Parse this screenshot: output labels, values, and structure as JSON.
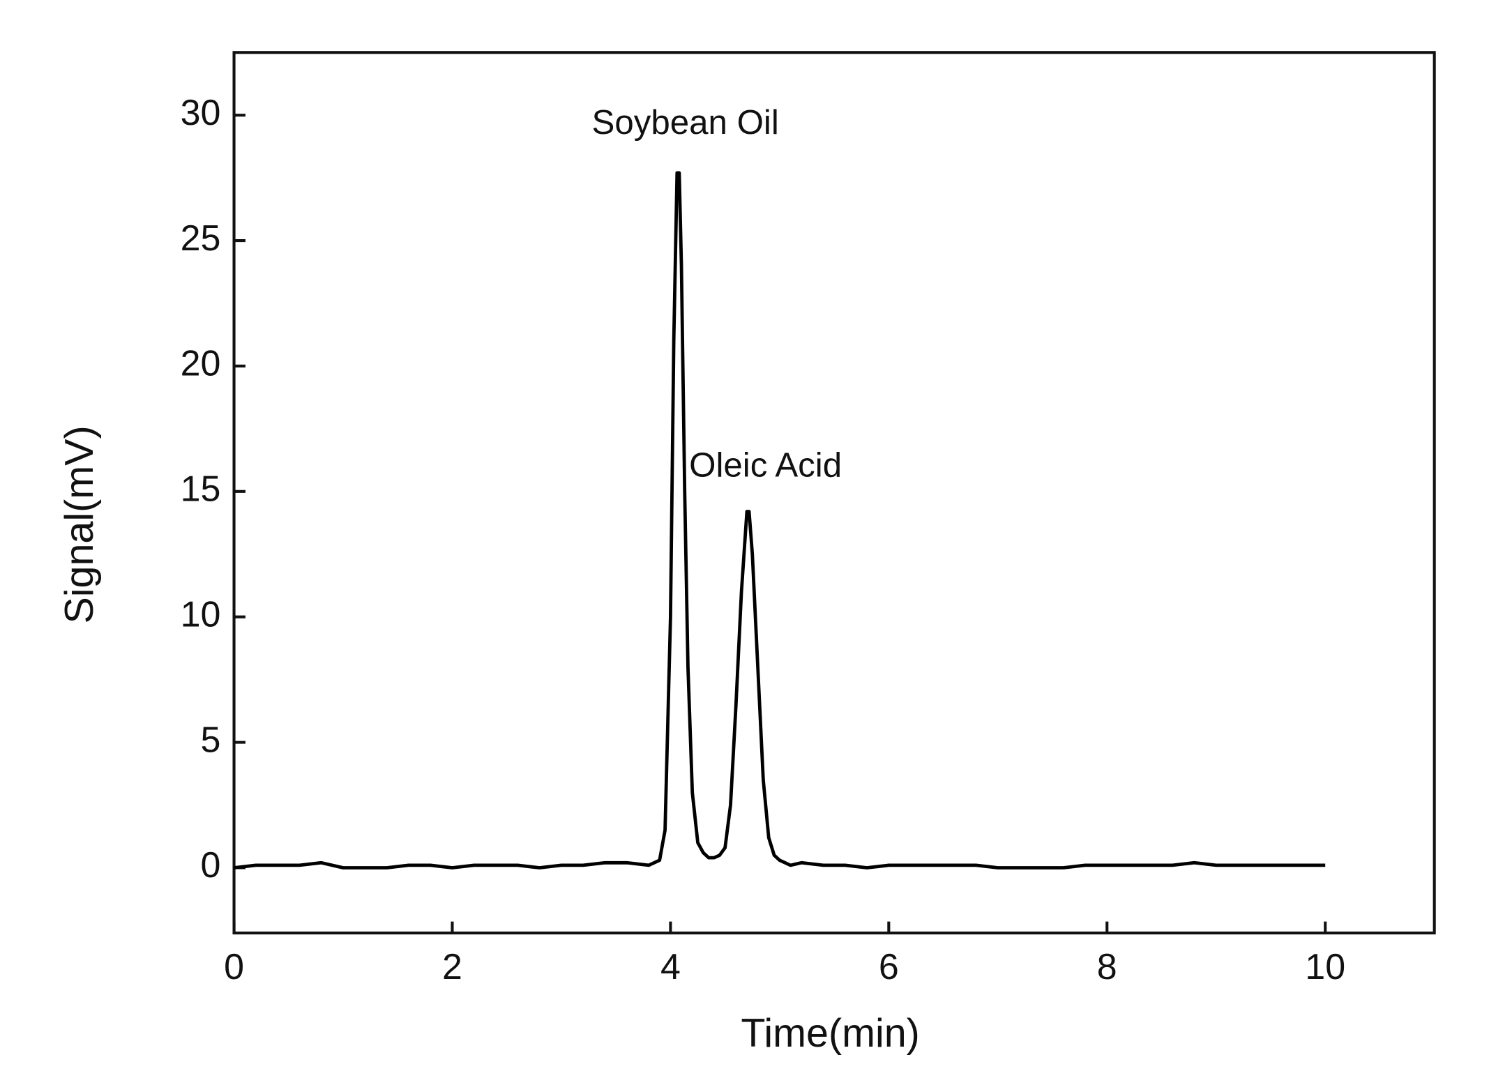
{
  "chart_data": {
    "type": "line",
    "x_label": "Time(min)",
    "y_label": "Signal(mV)",
    "annotations": [
      "Soybean Oil",
      "Oleic Acid"
    ],
    "xlim": [
      0,
      11
    ],
    "ylim": [
      -2.6,
      32.5
    ],
    "xticks": [
      0,
      2,
      4,
      6,
      8,
      10
    ],
    "yticks": [
      0,
      5,
      10,
      15,
      20,
      25,
      30
    ],
    "grid": false,
    "x": [
      0,
      0.2,
      0.4,
      0.6,
      0.8,
      1.0,
      1.2,
      1.4,
      1.6,
      1.8,
      2.0,
      2.2,
      2.4,
      2.6,
      2.8,
      3.0,
      3.2,
      3.4,
      3.6,
      3.8,
      3.9,
      3.95,
      4.0,
      4.03,
      4.06,
      4.08,
      4.1,
      4.13,
      4.16,
      4.2,
      4.25,
      4.3,
      4.35,
      4.4,
      4.45,
      4.5,
      4.55,
      4.6,
      4.65,
      4.7,
      4.72,
      4.75,
      4.8,
      4.85,
      4.9,
      4.95,
      5.0,
      5.1,
      5.2,
      5.4,
      5.6,
      5.8,
      6.0,
      6.2,
      6.4,
      6.6,
      6.8,
      7.0,
      7.2,
      7.4,
      7.6,
      7.8,
      8.0,
      8.2,
      8.4,
      8.6,
      8.8,
      9.0,
      9.2,
      9.4,
      9.6,
      9.8,
      10.0
    ],
    "series": [
      {
        "color": "#000000",
        "values": [
          0,
          0.1,
          0.1,
          0.1,
          0.2,
          0,
          0,
          0,
          0.1,
          0.1,
          0,
          0.1,
          0.1,
          0.1,
          0,
          0.1,
          0.1,
          0.2,
          0.2,
          0.1,
          0.3,
          1.5,
          10,
          21,
          27.7,
          27.7,
          24,
          15,
          8,
          3,
          1,
          0.6,
          0.4,
          0.4,
          0.5,
          0.8,
          2.5,
          6.5,
          11,
          14.2,
          14.2,
          12.5,
          8,
          3.5,
          1.2,
          0.5,
          0.3,
          0.1,
          0.2,
          0.1,
          0.1,
          0,
          0.1,
          0.1,
          0.1,
          0.1,
          0.1,
          0,
          0,
          0,
          0,
          0.1,
          0.1,
          0.1,
          0.1,
          0.1,
          0.2,
          0.1,
          0.1,
          0.1,
          0.1,
          0.1,
          0.1
        ]
      }
    ]
  }
}
